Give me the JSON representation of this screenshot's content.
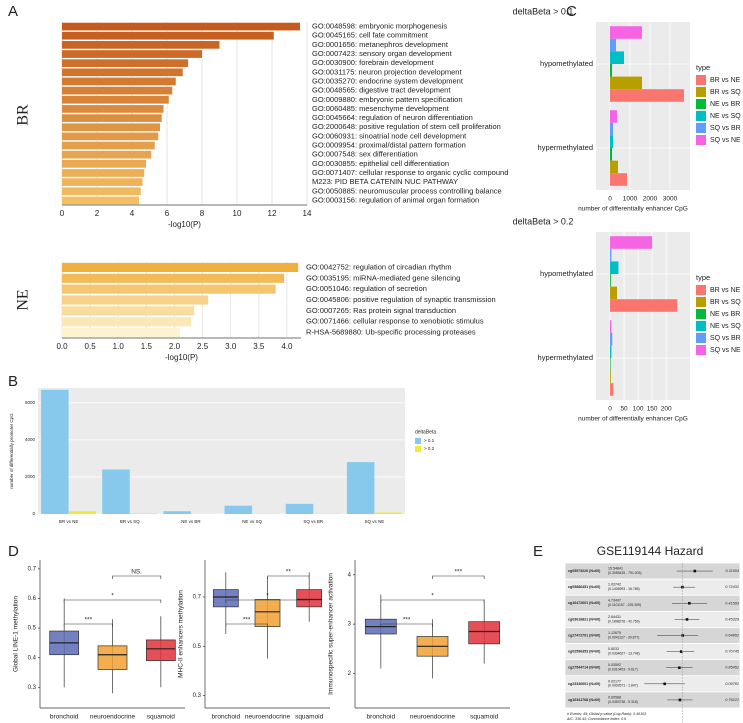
{
  "panel_labels": [
    "A",
    "B",
    "C",
    "D",
    "E"
  ],
  "chart_data": [
    {
      "type": "barh",
      "label": "BR",
      "xlabel": "-log10(P)",
      "categories": [
        "GO:0048598: embryonic morphogenesis",
        "GO:0045165: cell fate commitment",
        "GO:0001656: metanephros development",
        "GO:0007423: sensory organ development",
        "GO:0030900: forebrain development",
        "GO:0031175: neuron projection development",
        "GO:0035270: endocrine system development",
        "GO:0048565: digestive tract development",
        "GO:0009880: embryonic pattern specification",
        "GO:0060485: mesenchyme development",
        "GO:0045664: regulation of neuron differentiation",
        "GO:2000648: positive regulation of stem cell proliferation",
        "GO:0060931: sinoatrial node cell development",
        "GO:0009954: proximal/distal pattern formation",
        "GO:0007548: sex differentiation",
        "GO:0030855: epithelial cell differentiation",
        "GO:0071407: cellular response to organic cyclic compound",
        "M223: PID BETA CATENIN NUC PATHWAY",
        "GO:0050885: neuromuscular process controlling balance",
        "GO:0003156: regulation of animal organ formation"
      ],
      "values": [
        13.6,
        12.1,
        9.0,
        8.0,
        7.2,
        6.9,
        6.5,
        6.3,
        6.1,
        5.8,
        5.7,
        5.6,
        5.5,
        5.3,
        5.1,
        4.8,
        4.7,
        4.6,
        4.5,
        4.4
      ],
      "color_range": [
        "#c45a1c",
        "#f4be62"
      ],
      "xlim": [
        0,
        14
      ],
      "xticks": [
        0,
        2,
        4,
        6,
        8,
        10,
        12,
        14
      ],
      "grid": true
    },
    {
      "type": "barh",
      "label": "NE",
      "xlabel": "-log10(P)",
      "categories": [
        "GO:0042752: regulation of circadian rhythm",
        "GO:0035195: miRNA-mediated gene silencing",
        "GO:0051046: regulation of secretion",
        "GO:0045806: positive regulation of synaptic transmission",
        "GO:0007265: Ras protein signal transduction",
        "GO:0071466: cellular response to xenobiotic stimulus",
        "R-HSA-5689880: Ub-specific processing proteases"
      ],
      "values": [
        4.2,
        3.95,
        3.8,
        2.6,
        2.35,
        2.3,
        2.1
      ],
      "color_range": [
        "#f0b040",
        "#fdf3cf"
      ],
      "xlim": [
        0,
        4.25
      ],
      "xticks": [
        {
          "value": 0,
          "label": "0.0"
        },
        0.5,
        {
          "value": 1,
          "label": "1.0"
        },
        1.5,
        {
          "value": 2,
          "label": "2.0"
        },
        2.5,
        {
          "value": 3,
          "label": "3.0"
        },
        3.5,
        {
          "value": 4,
          "label": "4.0"
        }
      ],
      "grid": true
    },
    {
      "type": "bar",
      "ylabel": "number of differentially promoter CpG",
      "legend_title": "deltaBeta",
      "categories": [
        "BR vs NE",
        "BR vs SQ",
        "NE vs BR",
        "NE vs SQ",
        "SQ vs BR",
        "SQ vs NE"
      ],
      "series": [
        {
          "name": "> 0.1",
          "color": "#87c9ec",
          "values": [
            6700,
            2400,
            150,
            450,
            550,
            2800
          ]
        },
        {
          "name": "> 0.2",
          "color": "#f2ea3a",
          "values": [
            150,
            30,
            10,
            20,
            20,
            80
          ]
        }
      ],
      "ylim": [
        0,
        6800
      ],
      "yticks": [
        0,
        2000,
        4000,
        6000
      ],
      "grid": true
    },
    {
      "type": "barh_grouped",
      "title": "deltaBeta > 0.1",
      "xlabel": "number of differentially enhancer CpG",
      "legend_title": "type",
      "categories": [
        "hypomethylated",
        "hypermethylated"
      ],
      "series": [
        {
          "name": "BR vs NE",
          "color": "#f8766d",
          "values": [
            3700,
            850
          ]
        },
        {
          "name": "BR vs SQ",
          "color": "#b79f00",
          "values": [
            1600,
            400
          ]
        },
        {
          "name": "NE vs BR",
          "color": "#00ba38",
          "values": [
            100,
            100
          ]
        },
        {
          "name": "NE vs SQ",
          "color": "#00bfc4",
          "values": [
            700,
            150
          ]
        },
        {
          "name": "SQ vs BR",
          "color": "#619cff",
          "values": [
            300,
            150
          ]
        },
        {
          "name": "SQ vs NE",
          "color": "#f564e3",
          "values": [
            1600,
            350
          ]
        }
      ],
      "xlim": [
        -700,
        4000
      ],
      "xticks": [
        0,
        1000,
        2000,
        3000
      ],
      "grid": true
    },
    {
      "type": "barh_grouped",
      "title": "deltaBeta > 0.2",
      "xlabel": "number of differentially enhancer CpG",
      "legend_title": "type",
      "categories": [
        "hypomethylated",
        "hypermethylated"
      ],
      "series": [
        {
          "name": "BR vs NE",
          "color": "#f8766d",
          "values": [
            240,
            12
          ]
        },
        {
          "name": "BR vs SQ",
          "color": "#b79f00",
          "values": [
            25,
            3
          ]
        },
        {
          "name": "NE vs BR",
          "color": "#00ba38",
          "values": [
            3,
            2
          ]
        },
        {
          "name": "NE vs SQ",
          "color": "#00bfc4",
          "values": [
            30,
            5
          ]
        },
        {
          "name": "SQ vs BR",
          "color": "#619cff",
          "values": [
            5,
            8
          ]
        },
        {
          "name": "SQ vs NE",
          "color": "#f564e3",
          "values": [
            150,
            5
          ]
        }
      ],
      "xlim": [
        -50,
        285
      ],
      "xticks": [
        0,
        50,
        100,
        150,
        200
      ],
      "grid": true
    },
    {
      "type": "box",
      "ylabel": "Global LINE-1 methylation",
      "categories": [
        "bronchoid",
        "neuroendocrine",
        "squamoid"
      ],
      "boxes": [
        {
          "min": 0.3,
          "q1": 0.41,
          "median": 0.45,
          "q3": 0.49,
          "max": 0.6
        },
        {
          "min": 0.28,
          "q1": 0.36,
          "median": 0.41,
          "q3": 0.44,
          "max": 0.53
        },
        {
          "min": 0.3,
          "q1": 0.39,
          "median": 0.43,
          "q3": 0.46,
          "max": 0.54
        }
      ],
      "colors": [
        "#5b6bb5",
        "#f0a030",
        "#e0303a"
      ],
      "annotations": [
        "***",
        "*",
        "NS."
      ],
      "ylim": [
        0.23,
        0.73
      ],
      "yticks": [
        0.3,
        0.4,
        0.5,
        0.6,
        0.7
      ]
    },
    {
      "type": "box",
      "ylabel": "MHC-II enhancers methylation",
      "categories": [
        "bronchoid",
        "neuroendocrine",
        "squamoid"
      ],
      "boxes": [
        {
          "min": 0.55,
          "q1": 0.66,
          "median": 0.7,
          "q3": 0.73,
          "max": 0.8
        },
        {
          "min": 0.45,
          "q1": 0.58,
          "median": 0.64,
          "q3": 0.69,
          "max": 0.78
        },
        {
          "min": 0.6,
          "q1": 0.66,
          "median": 0.69,
          "q3": 0.73,
          "max": 0.8
        }
      ],
      "colors": [
        "#5b6bb5",
        "#f0a030",
        "#e0303a"
      ],
      "annotations": [
        "***",
        "*",
        "**"
      ],
      "ylim": [
        0.25,
        0.85
      ],
      "yticks": [
        0.3,
        0.5,
        0.7
      ]
    },
    {
      "type": "box",
      "ylabel": "Immunospecific super-enhancer activation",
      "categories": [
        "bronchoid",
        "neuroendocrine",
        "squamoid"
      ],
      "boxes": [
        {
          "min": 2.1,
          "q1": 2.8,
          "median": 2.95,
          "q3": 3.1,
          "max": 3.6
        },
        {
          "min": 1.9,
          "q1": 2.35,
          "median": 2.55,
          "q3": 2.75,
          "max": 3.1
        },
        {
          "min": 2.2,
          "q1": 2.6,
          "median": 2.85,
          "q3": 3.05,
          "max": 3.5
        }
      ],
      "colors": [
        "#5b6bb5",
        "#f0a030",
        "#e0303a"
      ],
      "annotations": [
        "***",
        "*",
        "***"
      ],
      "ylim": [
        1.3,
        4.3
      ],
      "yticks": [
        2,
        3,
        4
      ]
    },
    {
      "type": "forest",
      "title": "GSE119144 Hazard",
      "log": true,
      "xlim": [
        0.0001,
        100000
      ],
      "reference_line": 1,
      "rows": [
        {
          "name": "cg05573226 (N=60)",
          "hr": 15.54841,
          "ci_low": 0.3055435,
          "ci_high": 791.003,
          "ci_label": "(0.3055435 - 791.003)",
          "p": 0.11504
        },
        {
          "name": "cg05886451 (N=60)",
          "hr": 1.03742,
          "ci_low": 0.1406993,
          "ci_high": 16.785,
          "ci_label": "(0.1406993 - 16.785)",
          "p": 0.72431
        },
        {
          "name": "cg16472601 (N=60)",
          "hr": 4.73497,
          "ci_low": 0.1101157,
          "ci_high": 225.309,
          "ci_label": "(0.1101157 - 225.309)",
          "p": 0.41593
        },
        {
          "name": "cg03616821 (N=60)",
          "hr": 2.84431,
          "ci_low": 0.1898276,
          "ci_high": 42.759,
          "ci_label": "(0.1898276 - 42.759)",
          "p": 0.45329
        },
        {
          "name": "cg27472701 (N=60)",
          "hr": 1.12675,
          "ci_low": 0.0041127,
          "ci_high": 30.877,
          "ci_label": "(0.0041127 - 30.877)",
          "p": 0.64802
        },
        {
          "name": "cg02596353 (N=60)",
          "hr": 0.8033,
          "ci_low": 0.0334627,
          "ci_high": 13.748,
          "ci_label": "(0.0334627 - 13.748)",
          "p": 0.70745
        },
        {
          "name": "cg27544714 (N=60)",
          "hr": 0.53592,
          "ci_low": 0.0310453,
          "ci_high": 9.617,
          "ci_label": "(0.0310453 - 9.617)",
          "p": 0.85451
        },
        {
          "name": "cg23340601 (N=60)",
          "hr": 0.02177,
          "ci_low": 0.0002571,
          "ci_high": 1.847,
          "ci_label": "(0.0002571 - 1.847)",
          "p": 0.09781
        },
        {
          "name": "cg16341768 (N=60)",
          "hr": 0.60568,
          "ci_low": 0.0393738,
          "ci_high": 9.318,
          "ci_label": "(0.0393738 - 9.318)",
          "p": 0.76222
        }
      ],
      "footer": [
        "# Events: 49; Global p-value (Log-Rank): 0.46163",
        "AIC: 336.43; Concordance Index: 0.6"
      ]
    }
  ]
}
